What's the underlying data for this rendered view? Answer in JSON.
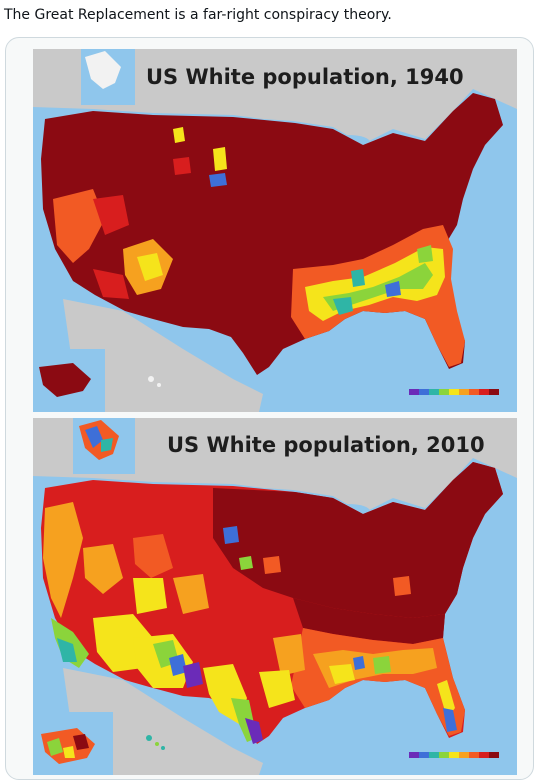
{
  "post": {
    "text": "The Great Replacement is a far-right conspiracy theory."
  },
  "maps": [
    {
      "title": "US White population, 1940"
    },
    {
      "title": "US White population, 2010"
    }
  ],
  "colors": {
    "ocean": "#8fc6ec",
    "land_gray": "#c9c9c9",
    "very_high": "#8b0a12",
    "high": "#d81e1e",
    "mid_high": "#f25a24",
    "mid": "#f6a11f",
    "mid_low": "#f5e41b",
    "low": "#8bd43b",
    "lower": "#2fb5a6",
    "lowest": "#3e6fd8",
    "minimal": "#6b2bb8"
  },
  "icons": [
    "legend-swatch-icon"
  ]
}
